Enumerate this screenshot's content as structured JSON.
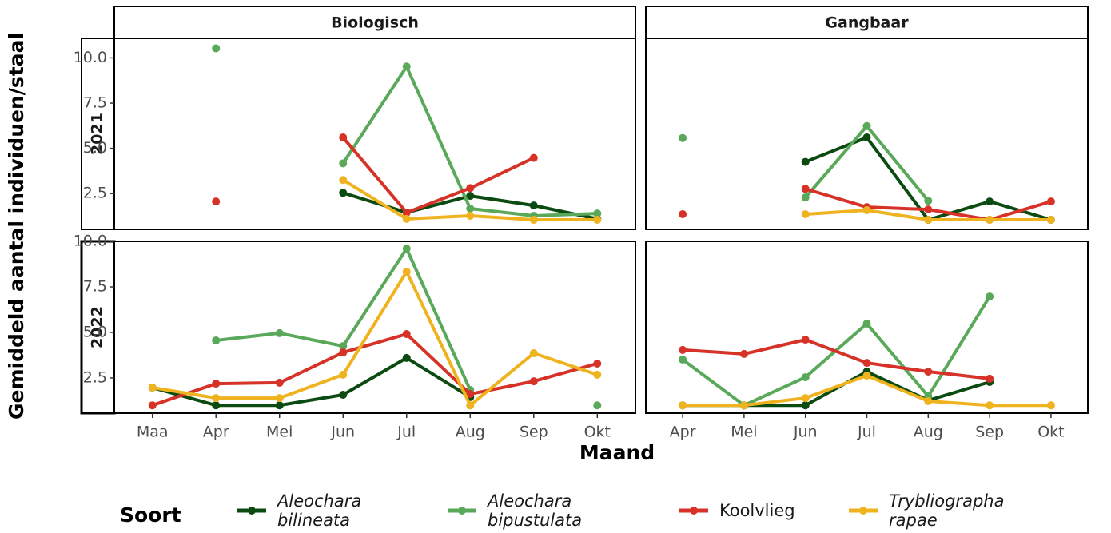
{
  "y_label": "Gemiddeld aantal individuen/staal",
  "x_label": "Maand",
  "legend_title": "Soort",
  "facets": {
    "columns": [
      "Biologisch",
      "Gangbaar"
    ],
    "rows": [
      "2021",
      "2022"
    ]
  },
  "chart_data": [
    {
      "type": "line",
      "categories": [
        "Maa",
        "Apr",
        "Mei",
        "Jun",
        "Jul",
        "Aug",
        "Sep",
        "Okt"
      ],
      "ylim": [
        0.52,
        11.08
      ],
      "yticks": [
        2.5,
        {
          "value": 5,
          "label": "5.0"
        },
        7.5,
        {
          "value": 10,
          "label": "10.0"
        }
      ],
      "series": [
        {
          "name": "Aleochara bilineata",
          "color": "#0b4a10",
          "values": [
            null,
            null,
            null,
            2.54,
            1.45,
            2.37,
            1.84,
            1.1
          ]
        },
        {
          "name": "Aleochara bipustulata",
          "color": "#5aa95a",
          "values": [
            null,
            10.53,
            null,
            4.17,
            9.52,
            1.67,
            1.27,
            1.4
          ]
        },
        {
          "name": "Koolvlieg",
          "color": "#d63228",
          "values": [
            null,
            2.06,
            null,
            5.6,
            1.45,
            2.8,
            4.47,
            null
          ]
        },
        {
          "name": "Trybliographa rapae",
          "color": "#efb320",
          "values": [
            null,
            null,
            null,
            3.25,
            1.1,
            1.27,
            1.05,
            1.05
          ]
        }
      ]
    },
    {
      "type": "line",
      "categories": [
        "Apr",
        "Mei",
        "Jun",
        "Jul",
        "Aug",
        "Sep",
        "Okt"
      ],
      "ylim": [
        0.52,
        11.08
      ],
      "series": [
        {
          "name": "Aleochara bilineata",
          "color": "#0b4a10",
          "values": [
            null,
            null,
            4.25,
            5.6,
            1.05,
            2.06,
            1.05
          ]
        },
        {
          "name": "Aleochara bipustulata",
          "color": "#5aa95a",
          "values": [
            5.57,
            null,
            2.28,
            6.23,
            2.1,
            null,
            null
          ]
        },
        {
          "name": "Koolvlieg",
          "color": "#d63228",
          "values": [
            1.36,
            null,
            2.76,
            1.75,
            1.62,
            1.05,
            2.06
          ]
        },
        {
          "name": "Trybliographa rapae",
          "color": "#efb320",
          "values": [
            null,
            null,
            1.36,
            1.58,
            1.05,
            1.05,
            1.05
          ]
        }
      ]
    },
    {
      "type": "line",
      "categories": [
        "Maa",
        "Apr",
        "Mei",
        "Jun",
        "Jul",
        "Aug",
        "Sep",
        "Okt"
      ],
      "ylim": [
        0.57,
        10.0
      ],
      "yticks": [
        2.5,
        {
          "value": 5,
          "label": "5.0"
        },
        7.5,
        {
          "value": 10,
          "label": "10.0"
        }
      ],
      "series": [
        {
          "name": "Aleochara bilineata",
          "color": "#0b4a10",
          "values": [
            1.97,
            1.0,
            1.0,
            1.58,
            3.6,
            1.45,
            null,
            null
          ]
        },
        {
          "name": "Aleochara bipustulata",
          "color": "#5aa95a",
          "values": [
            null,
            4.56,
            4.96,
            4.25,
            9.6,
            1.84,
            null,
            1.0
          ]
        },
        {
          "name": "Koolvlieg",
          "color": "#d63228",
          "values": [
            1.0,
            2.19,
            2.24,
            3.9,
            4.91,
            1.62,
            2.32,
            3.29
          ]
        },
        {
          "name": "Trybliographa rapae",
          "color": "#efb320",
          "values": [
            1.97,
            1.4,
            1.4,
            2.68,
            8.33,
            1.0,
            3.86,
            2.68
          ]
        }
      ]
    },
    {
      "type": "line",
      "categories": [
        "Apr",
        "Mei",
        "Jun",
        "Jul",
        "Aug",
        "Sep",
        "Okt"
      ],
      "ylim": [
        0.57,
        10.0
      ],
      "series": [
        {
          "name": "Aleochara bilineata",
          "color": "#0b4a10",
          "values": [
            1.0,
            1.0,
            1.0,
            2.85,
            1.27,
            2.28,
            null
          ]
        },
        {
          "name": "Aleochara bipustulata",
          "color": "#5aa95a",
          "values": [
            3.51,
            1.0,
            2.54,
            5.48,
            1.5,
            6.97,
            null
          ]
        },
        {
          "name": "Koolvlieg",
          "color": "#d63228",
          "values": [
            4.04,
            3.82,
            4.6,
            3.33,
            2.85,
            2.46,
            null
          ]
        },
        {
          "name": "Trybliographa rapae",
          "color": "#efb320",
          "values": [
            1.0,
            1.0,
            1.4,
            2.63,
            1.23,
            1.0,
            1.0
          ]
        }
      ]
    }
  ]
}
